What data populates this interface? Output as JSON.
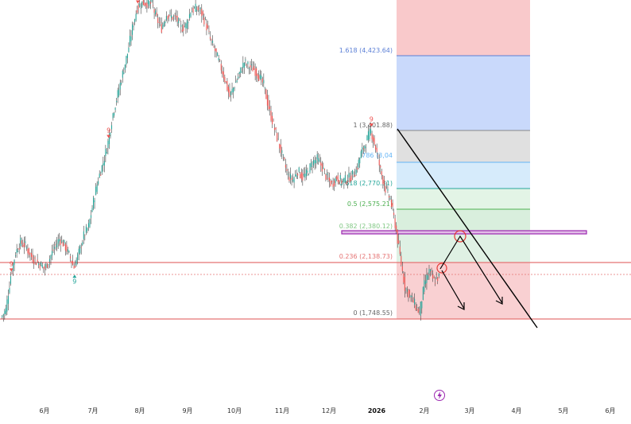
{
  "colors": {
    "up": "#26a69a",
    "down": "#ef5350",
    "wick": "#444444",
    "fib_extension": "#c9d9fb",
    "fib_top": "#f9c9cb",
    "fib_gray": "#e0e0e0",
    "fib_light_blue": "#d6ebfb",
    "fib_green": "#dff1e4",
    "fib_red_zone": "#f9d0d2",
    "support_line": "#e57373",
    "resistance_box": "#9c27b0",
    "trend_line": "#000000",
    "arrow": "#000000",
    "circle": "#e53935"
  },
  "chart_data": {
    "type": "candlestick",
    "x_axis_labels": [
      "6月",
      "7月",
      "8月",
      "9月",
      "10月",
      "11月",
      "12月",
      "2026",
      "2月",
      "3月",
      "4月",
      "5月",
      "6月"
    ],
    "fib_levels": [
      {
        "ratio": "1.618",
        "value": "4,423.64",
        "label": "1.618 (4,423.64)"
      },
      {
        "ratio": "1",
        "value": "3,401.88",
        "label": "1 (3,401.88)"
      },
      {
        "ratio": "0.786",
        "value": "3,04...",
        "label": "786 (3,04"
      },
      {
        "ratio": "0.618",
        "value": "2,770.31",
        "label": "0.618 (2,770.31)"
      },
      {
        "ratio": "0.5",
        "value": "2,575.21",
        "label": "0.5 (2,575.21)"
      },
      {
        "ratio": "0.382",
        "value": "2,380.12",
        "label": "0.382 (2,380.12)"
      },
      {
        "ratio": "0.236",
        "value": "2,138.73",
        "label": "0.236 (2,138.73)"
      },
      {
        "ratio": "0",
        "value": "1,748.55",
        "label": "0 (1,748.55)"
      }
    ],
    "price_path": [
      1760,
      1830,
      2130,
      2330,
      2420,
      2390,
      2310,
      2260,
      2230,
      2190,
      2280,
      2380,
      2450,
      2400,
      2310,
      2200,
      2330,
      2480,
      2560,
      2780,
      2980,
      3120,
      3300,
      3550,
      3720,
      3900,
      4080,
      4300,
      4480,
      4520,
      4520,
      4510,
      4380,
      4300,
      4420,
      4400,
      4390,
      4300,
      4320,
      4450,
      4470,
      4450,
      4350,
      4200,
      4100,
      3980,
      3850,
      3700,
      3800,
      3900,
      4000,
      3960,
      3940,
      3880,
      3800,
      3600,
      3450,
      3300,
      3150,
      3000,
      2970,
      3050,
      2990,
      3030,
      3120,
      3150,
      3080,
      2980,
      2930,
      2990,
      2960,
      2970,
      3000,
      3050,
      3200,
      3300,
      3400,
      3250,
      3050,
      2890,
      2800,
      2580,
      2300,
      2030,
      1960,
      1880,
      1800,
      2050,
      2170,
      2080,
      2120
    ],
    "markers": [
      {
        "label": "9",
        "index": 2,
        "kind": "top"
      },
      {
        "label": "9",
        "index": 15,
        "kind": "bottom"
      },
      {
        "label": "9",
        "index": 22,
        "kind": "top"
      },
      {
        "label": "9",
        "index": 28,
        "kind": "top"
      },
      {
        "label": "9",
        "index": 76,
        "kind": "top"
      }
    ]
  }
}
